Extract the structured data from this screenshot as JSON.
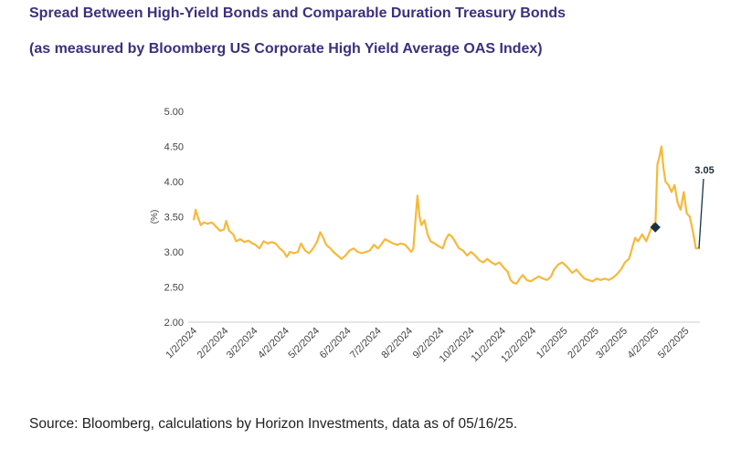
{
  "title": "Spread Between High-Yield Bonds and Comparable Duration Treasury Bonds",
  "subtitle": "(as measured by Bloomberg US Corporate High Yield Average OAS Index)",
  "source": "Source: Bloomberg, calculations by Horizon Investments, data as of 05/16/25.",
  "colors": {
    "line": "#f6b93b",
    "axis": "#cccccc",
    "marker": "#173344",
    "title": "#3d2f7d"
  },
  "chart_data": {
    "type": "line",
    "title": "Spread Between High-Yield Bonds and Comparable Duration Treasury Bonds",
    "subtitle": "(as measured by Bloomberg US Corporate High Yield Average OAS Index)",
    "xlabel": "",
    "ylabel": "(%)",
    "ylim": [
      2.0,
      5.0
    ],
    "yticks": [
      "5.00",
      "4.50",
      "4.00",
      "3.50",
      "3.00",
      "2.50",
      "2.00"
    ],
    "xticks": [
      "1/2/2024",
      "2/2/2024",
      "3/2/2024",
      "4/2/2024",
      "5/2/2024",
      "6/2/2024",
      "7/2/2024",
      "8/2/2024",
      "9/2/2024",
      "10/2/2024",
      "11/2/2024",
      "12/2/2024",
      "1/2/2025",
      "2/2/2025",
      "3/2/2025",
      "4/2/2025",
      "5/2/2025"
    ],
    "grid": false,
    "series": [
      {
        "values": [
          [
            "2024-01-02",
            3.45
          ],
          [
            "2024-01-04",
            3.6
          ],
          [
            "2024-01-06",
            3.5
          ],
          [
            "2024-01-09",
            3.38
          ],
          [
            "2024-01-12",
            3.42
          ],
          [
            "2024-01-16",
            3.4
          ],
          [
            "2024-01-20",
            3.42
          ],
          [
            "2024-01-24",
            3.36
          ],
          [
            "2024-01-28",
            3.3
          ],
          [
            "2024-02-01",
            3.32
          ],
          [
            "2024-02-03",
            3.44
          ],
          [
            "2024-02-06",
            3.3
          ],
          [
            "2024-02-10",
            3.25
          ],
          [
            "2024-02-13",
            3.15
          ],
          [
            "2024-02-17",
            3.18
          ],
          [
            "2024-02-21",
            3.14
          ],
          [
            "2024-02-25",
            3.16
          ],
          [
            "2024-02-29",
            3.12
          ],
          [
            "2024-03-03",
            3.1
          ],
          [
            "2024-03-07",
            3.05
          ],
          [
            "2024-03-11",
            3.15
          ],
          [
            "2024-03-15",
            3.12
          ],
          [
            "2024-03-19",
            3.14
          ],
          [
            "2024-03-23",
            3.12
          ],
          [
            "2024-03-27",
            3.05
          ],
          [
            "2024-03-31",
            3.0
          ],
          [
            "2024-04-03",
            2.93
          ],
          [
            "2024-04-06",
            3.0
          ],
          [
            "2024-04-10",
            2.98
          ],
          [
            "2024-04-14",
            3.0
          ],
          [
            "2024-04-17",
            3.12
          ],
          [
            "2024-04-21",
            3.02
          ],
          [
            "2024-04-25",
            2.98
          ],
          [
            "2024-04-29",
            3.05
          ],
          [
            "2024-05-03",
            3.15
          ],
          [
            "2024-05-06",
            3.28
          ],
          [
            "2024-05-09",
            3.2
          ],
          [
            "2024-05-12",
            3.1
          ],
          [
            "2024-05-16",
            3.05
          ],
          [
            "2024-05-19",
            3.0
          ],
          [
            "2024-05-23",
            2.95
          ],
          [
            "2024-05-27",
            2.9
          ],
          [
            "2024-05-31",
            2.95
          ],
          [
            "2024-06-04",
            3.02
          ],
          [
            "2024-06-08",
            3.05
          ],
          [
            "2024-06-12",
            3.0
          ],
          [
            "2024-06-16",
            2.98
          ],
          [
            "2024-06-20",
            3.0
          ],
          [
            "2024-06-24",
            3.02
          ],
          [
            "2024-06-28",
            3.1
          ],
          [
            "2024-07-02",
            3.05
          ],
          [
            "2024-07-05",
            3.1
          ],
          [
            "2024-07-09",
            3.18
          ],
          [
            "2024-07-13",
            3.15
          ],
          [
            "2024-07-17",
            3.12
          ],
          [
            "2024-07-21",
            3.1
          ],
          [
            "2024-07-25",
            3.12
          ],
          [
            "2024-07-29",
            3.1
          ],
          [
            "2024-08-01",
            3.05
          ],
          [
            "2024-08-04",
            3.0
          ],
          [
            "2024-08-06",
            3.05
          ],
          [
            "2024-08-08",
            3.45
          ],
          [
            "2024-08-10",
            3.8
          ],
          [
            "2024-08-12",
            3.5
          ],
          [
            "2024-08-14",
            3.38
          ],
          [
            "2024-08-17",
            3.45
          ],
          [
            "2024-08-20",
            3.25
          ],
          [
            "2024-08-23",
            3.15
          ],
          [
            "2024-08-27",
            3.12
          ],
          [
            "2024-08-31",
            3.08
          ],
          [
            "2024-09-04",
            3.05
          ],
          [
            "2024-09-07",
            3.18
          ],
          [
            "2024-09-10",
            3.25
          ],
          [
            "2024-09-13",
            3.22
          ],
          [
            "2024-09-16",
            3.15
          ],
          [
            "2024-09-20",
            3.05
          ],
          [
            "2024-09-24",
            3.02
          ],
          [
            "2024-09-28",
            2.95
          ],
          [
            "2024-10-02",
            3.0
          ],
          [
            "2024-10-06",
            2.95
          ],
          [
            "2024-10-10",
            2.88
          ],
          [
            "2024-10-14",
            2.85
          ],
          [
            "2024-10-18",
            2.9
          ],
          [
            "2024-10-22",
            2.85
          ],
          [
            "2024-10-26",
            2.82
          ],
          [
            "2024-10-30",
            2.85
          ],
          [
            "2024-11-03",
            2.78
          ],
          [
            "2024-11-07",
            2.72
          ],
          [
            "2024-11-10",
            2.6
          ],
          [
            "2024-11-13",
            2.56
          ],
          [
            "2024-11-16",
            2.55
          ],
          [
            "2024-11-19",
            2.62
          ],
          [
            "2024-11-22",
            2.67
          ],
          [
            "2024-11-26",
            2.6
          ],
          [
            "2024-11-30",
            2.58
          ],
          [
            "2024-12-04",
            2.62
          ],
          [
            "2024-12-08",
            2.65
          ],
          [
            "2024-12-12",
            2.62
          ],
          [
            "2024-12-16",
            2.6
          ],
          [
            "2024-12-20",
            2.65
          ],
          [
            "2024-12-23",
            2.75
          ],
          [
            "2024-12-27",
            2.82
          ],
          [
            "2024-12-31",
            2.85
          ],
          [
            "2025-01-04",
            2.8
          ],
          [
            "2025-01-07",
            2.75
          ],
          [
            "2025-01-10",
            2.7
          ],
          [
            "2025-01-14",
            2.75
          ],
          [
            "2025-01-18",
            2.68
          ],
          [
            "2025-01-22",
            2.62
          ],
          [
            "2025-01-26",
            2.6
          ],
          [
            "2025-01-30",
            2.58
          ],
          [
            "2025-02-03",
            2.62
          ],
          [
            "2025-02-07",
            2.6
          ],
          [
            "2025-02-11",
            2.62
          ],
          [
            "2025-02-15",
            2.6
          ],
          [
            "2025-02-19",
            2.63
          ],
          [
            "2025-02-23",
            2.68
          ],
          [
            "2025-02-27",
            2.75
          ],
          [
            "2025-03-03",
            2.85
          ],
          [
            "2025-03-07",
            2.9
          ],
          [
            "2025-03-10",
            3.05
          ],
          [
            "2025-03-13",
            3.2
          ],
          [
            "2025-03-16",
            3.15
          ],
          [
            "2025-03-20",
            3.25
          ],
          [
            "2025-03-24",
            3.15
          ],
          [
            "2025-03-28",
            3.3
          ],
          [
            "2025-03-31",
            3.4
          ],
          [
            "2025-04-02",
            3.35
          ],
          [
            "2025-04-04",
            4.25
          ],
          [
            "2025-04-06",
            4.35
          ],
          [
            "2025-04-08",
            4.5
          ],
          [
            "2025-04-10",
            4.2
          ],
          [
            "2025-04-12",
            4.0
          ],
          [
            "2025-04-15",
            3.95
          ],
          [
            "2025-04-18",
            3.85
          ],
          [
            "2025-04-21",
            3.95
          ],
          [
            "2025-04-24",
            3.7
          ],
          [
            "2025-04-27",
            3.6
          ],
          [
            "2025-04-30",
            3.85
          ],
          [
            "2025-05-03",
            3.55
          ],
          [
            "2025-05-06",
            3.5
          ],
          [
            "2025-05-09",
            3.3
          ],
          [
            "2025-05-12",
            3.05
          ],
          [
            "2025-05-16",
            3.05
          ]
        ]
      }
    ],
    "marker": {
      "x": "2025-04-02",
      "y": 3.35,
      "shape": "diamond"
    },
    "annotation": {
      "text": "3.05",
      "x": "2025-05-16",
      "y": 3.05
    }
  }
}
